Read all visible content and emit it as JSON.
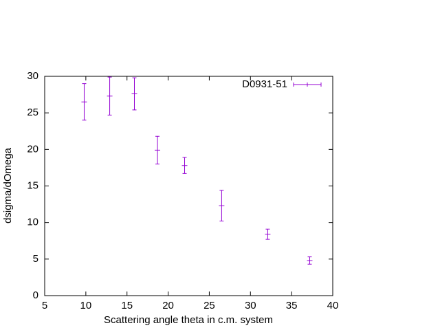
{
  "chart_data": {
    "type": "errorbar",
    "x_label": "Scattering angle theta in c.m. system",
    "y_label": "dsigma/dOmega",
    "xlim": [
      5,
      40
    ],
    "xticks": [
      5,
      10,
      15,
      20,
      25,
      30,
      35,
      40
    ],
    "ylim": [
      0,
      30
    ],
    "yticks": [
      0,
      5,
      10,
      15,
      20,
      25,
      30
    ],
    "legend": "top right",
    "series": [
      {
        "name": "D0931-51",
        "color": "#9400d3",
        "x": [
          9.8,
          12.9,
          15.9,
          18.7,
          22.0,
          26.5,
          32.1,
          37.2
        ],
        "values": [
          26.5,
          27.3,
          27.6,
          19.9,
          17.8,
          12.3,
          8.4,
          4.8
        ],
        "errors": [
          2.5,
          2.6,
          2.2,
          1.9,
          1.1,
          2.1,
          0.7,
          0.5
        ]
      }
    ]
  }
}
